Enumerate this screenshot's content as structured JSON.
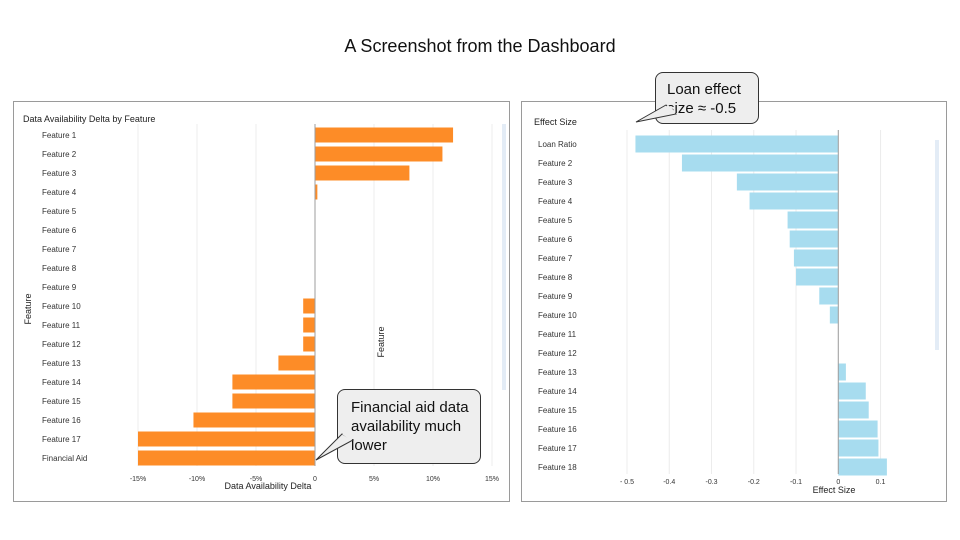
{
  "page": {
    "title": "A Screenshot from the Dashboard"
  },
  "annotations": {
    "financial_aid": "Financial aid data availability much lower",
    "loan_effect": "Loan effect size ≈ -0.5"
  },
  "colors": {
    "left_bars": "#fd8c27",
    "right_bars": "#a7dcef",
    "grid": "#ececec",
    "axis": "#9e9e9e"
  },
  "chart_data": [
    {
      "type": "bar",
      "orientation": "horizontal",
      "title": "Data Availability Delta by Feature",
      "xlabel": "Data Availability Delta",
      "ylabel": "Feature",
      "secondary_label": "Feature",
      "xlim": [
        -15,
        15
      ],
      "x_ticks": [
        -15,
        -10,
        -5,
        0,
        5,
        10,
        15
      ],
      "x_tick_labels": [
        "-15%",
        "-10%",
        "-5%",
        "0",
        "5%",
        "10%",
        "15%"
      ],
      "grid": true,
      "categories": [
        "Feature 1",
        "Feature 2",
        "Feature 3",
        "Feature 4",
        "Feature 5",
        "Feature 6",
        "Feature 7",
        "Feature 8",
        "Feature 9",
        "Feature 10",
        "Feature 11",
        "Feature 12",
        "Feature 13",
        "Feature 14",
        "Feature 15",
        "Feature 16",
        "Feature 17",
        "Financial Aid"
      ],
      "values": [
        11.7,
        10.8,
        8.0,
        0.2,
        0,
        0,
        0,
        0,
        0,
        -1.0,
        -1.0,
        -1.0,
        -3.1,
        -7.0,
        -7.0,
        -10.3,
        -15.0,
        -15.0
      ]
    },
    {
      "type": "bar",
      "orientation": "horizontal",
      "title": "Effect Size",
      "xlabel": "Effect Size",
      "ylabel": "",
      "xlim": [
        -0.5,
        0.12
      ],
      "x_ticks": [
        -0.5,
        -0.4,
        -0.3,
        -0.2,
        -0.1,
        0,
        0.1
      ],
      "x_tick_labels": [
        "- 0.5",
        "-0.4",
        "-0.3",
        "-0.2",
        "-0.1",
        "0",
        "0.1"
      ],
      "grid": true,
      "categories": [
        "Loan Ratio",
        "Feature 2",
        "Feature 3",
        "Feature 4",
        "Feature 5",
        "Feature 6",
        "Feature 7",
        "Feature 8",
        "Feature 9",
        "Feature 10",
        "Feature 11",
        "Feature 12",
        "Feature 13",
        "Feature 14",
        "Feature 15",
        "Feature 16",
        "Feature 17",
        "Feature 18"
      ],
      "values": [
        -0.48,
        -0.37,
        -0.24,
        -0.21,
        -0.12,
        -0.115,
        -0.105,
        -0.1,
        -0.045,
        -0.02,
        0,
        0,
        0.018,
        0.065,
        0.072,
        0.093,
        0.095,
        0.115
      ]
    }
  ]
}
